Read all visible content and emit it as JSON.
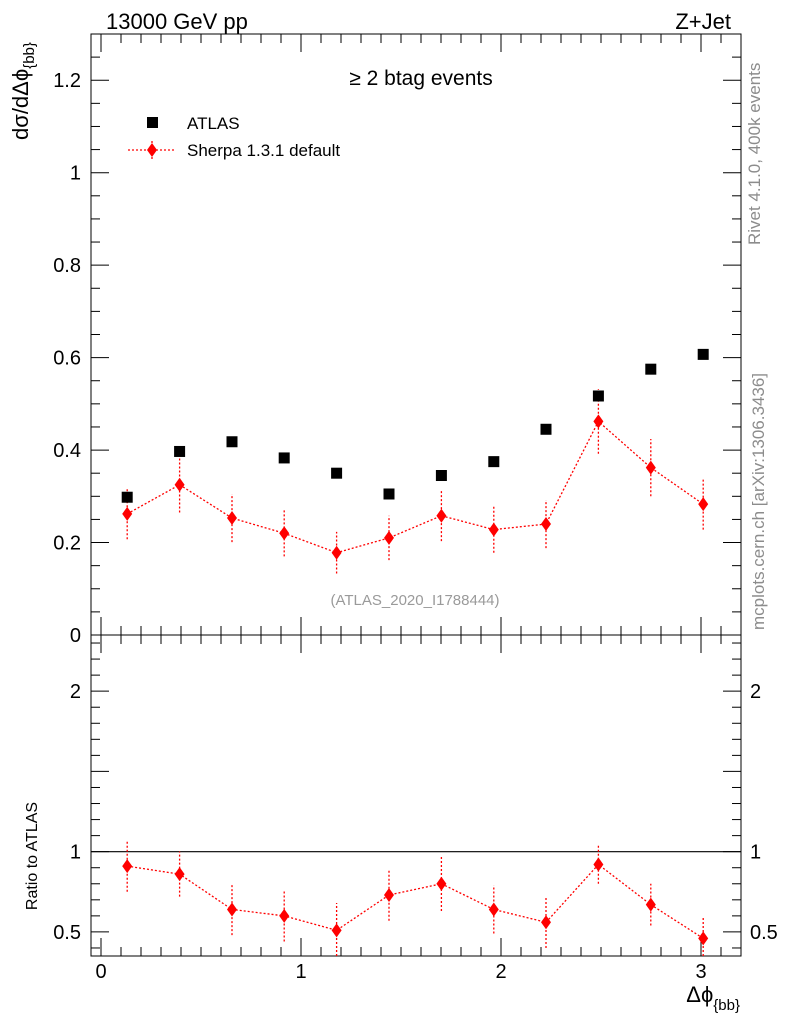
{
  "header": {
    "left": "13000 GeV pp",
    "right": "Z+Jet"
  },
  "side": {
    "rivet": "Rivet 4.1.0,  400k events",
    "mcplots": "mcplots.cern.ch [arXiv:1306.3436]"
  },
  "chart_data": [
    {
      "type": "scatter",
      "panel": "main",
      "title": "≥ 2 btag events",
      "analysis_label": "(ATLAS_2020_I1788444)",
      "ylabel": "dσ/dΔϕ",
      "ylabel_sub": "{bb}",
      "xlabel": "Δϕ",
      "xlabel_sub": "{bb}",
      "xlim": [
        -0.05,
        3.2
      ],
      "ylim": [
        0,
        1.3
      ],
      "yticks": [
        0,
        0.2,
        0.4,
        0.6,
        0.8,
        1,
        1.2
      ],
      "ytick_labels": [
        "0",
        "0.2",
        "0.4",
        "0.6",
        "0.8",
        "1",
        "1.2"
      ],
      "legend_position": "top-left",
      "series": [
        {
          "name": "ATLAS",
          "marker": "square",
          "color": "#000000",
          "x": [
            0.131,
            0.393,
            0.655,
            0.916,
            1.178,
            1.44,
            1.702,
            1.964,
            2.225,
            2.487,
            2.749,
            3.011
          ],
          "y": [
            0.298,
            0.397,
            0.418,
            0.383,
            0.35,
            0.305,
            0.345,
            0.375,
            0.445,
            0.517,
            0.575,
            0.607
          ]
        },
        {
          "name": "Sherpa 1.3.1 default",
          "marker": "diamond",
          "color": "#ff0000",
          "x": [
            0.131,
            0.393,
            0.655,
            0.916,
            1.178,
            1.44,
            1.702,
            1.964,
            2.225,
            2.487,
            2.749,
            3.011
          ],
          "y": [
            0.262,
            0.325,
            0.253,
            0.22,
            0.178,
            0.21,
            0.258,
            0.228,
            0.24,
            0.462,
            0.362,
            0.283
          ],
          "yerr": [
            0.055,
            0.06,
            0.052,
            0.05,
            0.045,
            0.048,
            0.055,
            0.05,
            0.052,
            0.07,
            0.062,
            0.055
          ]
        }
      ]
    },
    {
      "type": "scatter",
      "panel": "ratio",
      "ylabel": "Ratio to ATLAS",
      "xlim": [
        -0.05,
        3.2
      ],
      "ylim": [
        0.35,
        2.35
      ],
      "xticks": [
        0,
        1,
        2,
        3
      ],
      "xtick_labels": [
        "0",
        "1",
        "2",
        "3"
      ],
      "yticks": [
        0.5,
        1,
        2
      ],
      "ytick_labels": [
        "0.5",
        "1",
        "2"
      ],
      "reference_line": 1,
      "series": [
        {
          "name": "Sherpa 1.3.1 default",
          "marker": "diamond",
          "color": "#ff0000",
          "x": [
            0.131,
            0.393,
            0.655,
            0.916,
            1.178,
            1.44,
            1.702,
            1.964,
            2.225,
            2.487,
            2.749,
            3.011
          ],
          "y": [
            0.91,
            0.86,
            0.64,
            0.6,
            0.51,
            0.73,
            0.8,
            0.64,
            0.56,
            0.92,
            0.67,
            0.46
          ],
          "yerr": [
            0.16,
            0.14,
            0.16,
            0.16,
            0.17,
            0.16,
            0.17,
            0.15,
            0.16,
            0.12,
            0.13,
            0.13
          ]
        }
      ]
    }
  ]
}
